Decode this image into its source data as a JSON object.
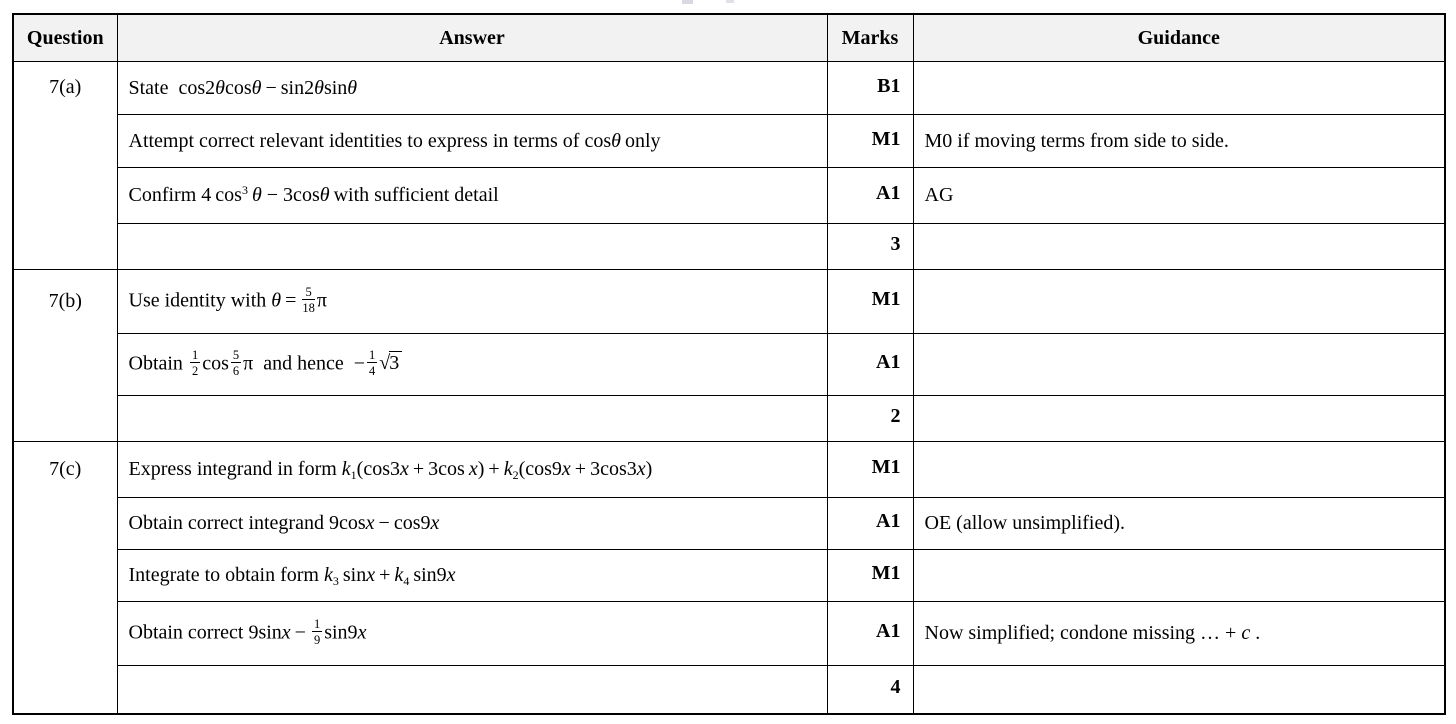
{
  "colors": {
    "header_background": "#f2f2f2",
    "border": "#000000",
    "text": "#000000",
    "page_background": "#ffffff"
  },
  "table": {
    "headers": [
      "Question",
      "Answer",
      "Marks",
      "Guidance"
    ],
    "sections": [
      {
        "question": "7(a)",
        "rows": [
          {
            "answer_html": "State&nbsp; cos2<i>θ</i>cos<i>θ</i>&thinsp;−&thinsp;sin2<i>θ</i>sin<i>θ</i>",
            "mark": "B1",
            "guidance_html": "",
            "total": false
          },
          {
            "answer_html": "Attempt correct relevant identities to express in terms of cos<i>θ</i>&thinsp;only",
            "mark": "M1",
            "guidance_html": "M0 if moving terms from side to side.",
            "total": false
          },
          {
            "answer_html": "Confirm 4&thinsp;cos<sup>3</sup>&thinsp;<i>θ</i> − 3cos<i>θ</i>&thinsp;with sufficient detail",
            "mark": "A1",
            "guidance_html": "AG",
            "total": false
          },
          {
            "answer_html": "",
            "mark": "3",
            "guidance_html": "",
            "total": true
          }
        ]
      },
      {
        "question": "7(b)",
        "rows": [
          {
            "answer_html": "Use identity with <i>θ</i>&thinsp;=&thinsp;<frac><fn>5</fn><fd>18</fd></frac>π",
            "mark": "M1",
            "guidance_html": "",
            "total": false
          },
          {
            "answer_html": "Obtain <frac><fn>1</fn><fd>2</fd></frac>cos<frac><fn>5</fn><fd>6</fd></frac>π&nbsp; and hence &nbsp;−<frac><fn>1</fn><fd>4</fd></frac><sqrt>√<rad>3</rad></sqrt>",
            "mark": "A1",
            "guidance_html": "",
            "total": false
          },
          {
            "answer_html": "",
            "mark": "2",
            "guidance_html": "",
            "total": true
          }
        ]
      },
      {
        "question": "7(c)",
        "rows": [
          {
            "answer_html": "Express integrand in form <i>k</i><sub>1</sub>(cos3<i>x</i>&thinsp;+&thinsp;3cos&thinsp;<i>x</i>)&thinsp;+&thinsp;<i>k</i><sub>2</sub>(cos9<i>x</i>&thinsp;+&thinsp;3cos3<i>x</i>)",
            "mark": "M1",
            "guidance_html": "",
            "total": false
          },
          {
            "answer_html": "Obtain correct integrand 9cos<i>x</i>&thinsp;−&thinsp;cos9<i>x</i>",
            "mark": "A1",
            "guidance_html": "OE (allow unsimplified).",
            "total": false
          },
          {
            "answer_html": "Integrate to obtain form <i>k</i><sub>3</sub>&thinsp;sin<i>x</i>&thinsp;+&thinsp;<i>k</i><sub>4</sub>&thinsp;sin9<i>x</i>",
            "mark": "M1",
            "guidance_html": "",
            "total": false
          },
          {
            "answer_html": "Obtain correct 9sin<i>x</i>&thinsp;−&thinsp;<frac><fn>1</fn><fd>9</fd></frac>sin9<i>x</i>",
            "mark": "A1",
            "guidance_html": "Now simplified; condone missing … + <i>c</i> .",
            "total": false
          },
          {
            "answer_html": "",
            "mark": "4",
            "guidance_html": "",
            "total": true
          }
        ]
      }
    ]
  }
}
